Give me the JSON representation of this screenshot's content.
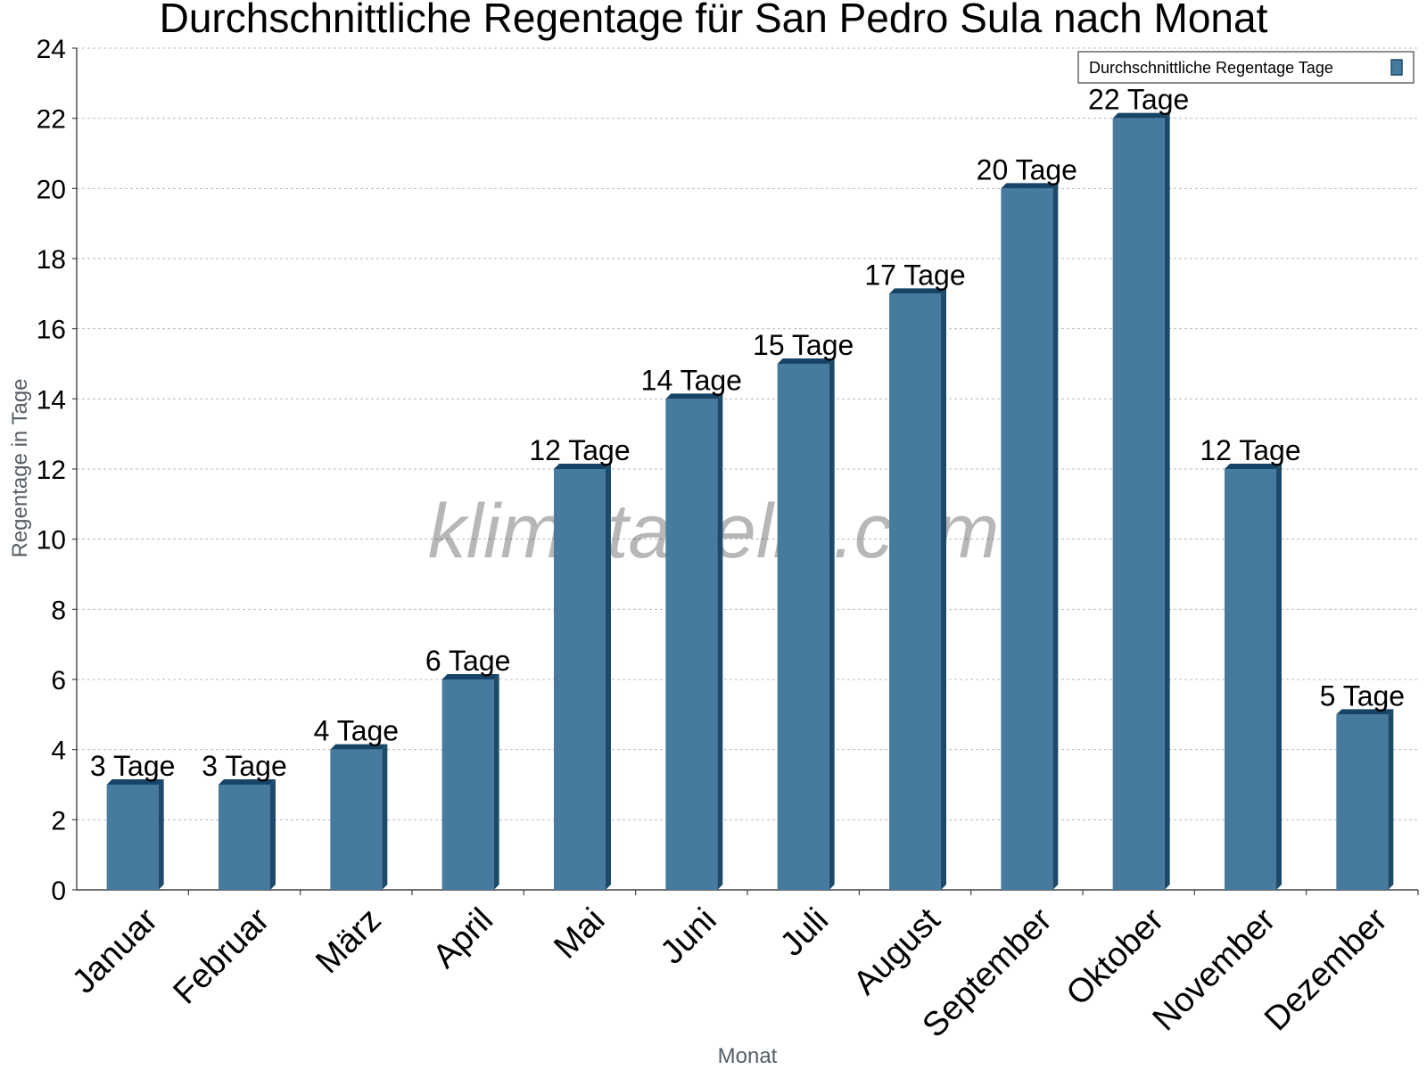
{
  "colors": {
    "bar_face": "#467b9e",
    "bar_side": "#1e4a6a",
    "bar_top": "#164466",
    "grid": "#bbbbbb",
    "axis": "#444444"
  },
  "watermark": "klimatabelle.com",
  "chart_data": {
    "type": "bar",
    "title": "Durchschnittliche Regentage für San Pedro Sula nach Monat",
    "xlabel": "Monat",
    "ylabel": "Regentage in Tage",
    "ylim": [
      0,
      24
    ],
    "yticks": [
      "0",
      "2",
      "4",
      "6",
      "8",
      "10",
      "12",
      "14",
      "16",
      "18",
      "20",
      "22",
      "24"
    ],
    "grid": true,
    "legend_position": "top-right",
    "categories": [
      "Januar",
      "Februar",
      "März",
      "April",
      "Mai",
      "Juni",
      "Juli",
      "August",
      "September",
      "Oktober",
      "November",
      "Dezember"
    ],
    "series": [
      {
        "name": "Durchschnittliche Regentage Tage",
        "values": [
          3,
          3,
          4,
          6,
          12,
          14,
          15,
          17,
          20,
          22,
          12,
          5
        ],
        "labels": [
          "3 Tage",
          "3 Tage",
          "4 Tage",
          "6 Tage",
          "12 Tage",
          "14 Tage",
          "15 Tage",
          "17 Tage",
          "20 Tage",
          "22 Tage",
          "12 Tage",
          "5 Tage"
        ]
      }
    ]
  }
}
